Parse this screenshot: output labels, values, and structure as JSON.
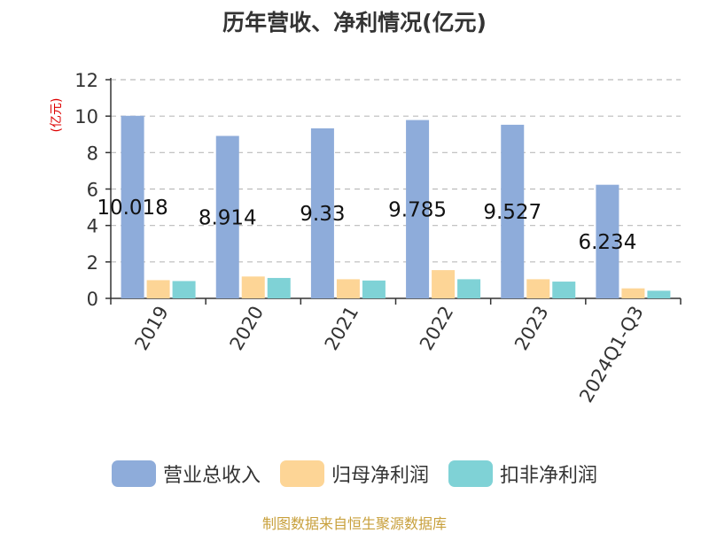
{
  "colors": {
    "revenue": "#8eacda",
    "net_profit": "#fdd596",
    "net_profit_ex": "#7fd2d6",
    "ylabel": "#dd0000",
    "source": "#c8a03c"
  },
  "legend": [
    {
      "label": "营业总收入",
      "color": "#8eacda"
    },
    {
      "label": "归母净利润",
      "color": "#fdd596"
    },
    {
      "label": "扣非净利润",
      "color": "#7fd2d6"
    }
  ],
  "source_text": "制图数据来自恒生聚源数据库",
  "chart_data": {
    "type": "bar",
    "title": "历年营收、净利情况(亿元)",
    "ylabel": "(亿元)",
    "xlabel": "",
    "categories": [
      "2019",
      "2020",
      "2021",
      "2022",
      "2023",
      "2024Q1-Q3"
    ],
    "ylim": [
      0,
      12
    ],
    "yticks": [
      0,
      2,
      4,
      6,
      8,
      10,
      12
    ],
    "grid": true,
    "legend_position": "bottom",
    "series": [
      {
        "name": "营业总收入",
        "values": [
          10.018,
          8.914,
          9.33,
          9.785,
          9.527,
          6.234
        ],
        "data_labels": [
          "10.018",
          "8.914",
          "9.33",
          "9.785",
          "9.527",
          "6.234"
        ]
      },
      {
        "name": "归母净利润",
        "values": [
          1.0,
          1.2,
          1.05,
          1.55,
          1.05,
          0.55
        ]
      },
      {
        "name": "扣非净利润",
        "values": [
          0.95,
          1.12,
          0.98,
          1.05,
          0.92,
          0.42
        ]
      }
    ]
  }
}
